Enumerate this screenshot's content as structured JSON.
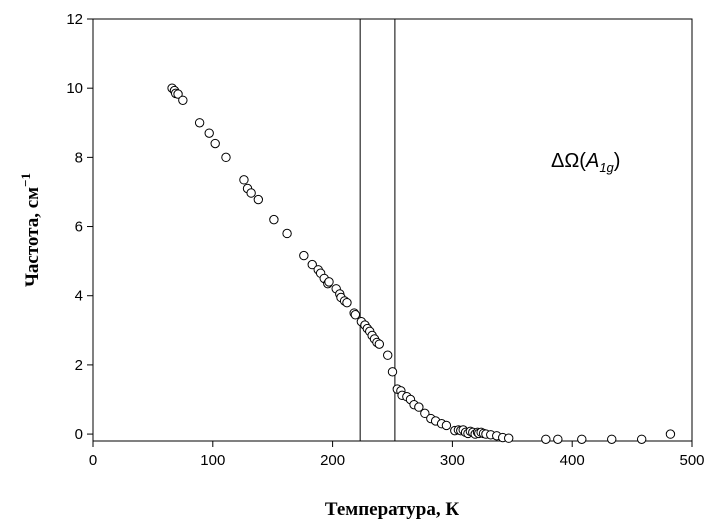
{
  "chart_data": {
    "type": "scatter",
    "xlabel": "Температура, К",
    "ylabel_main": "Частота, см",
    "ylabel_sup": "−1",
    "xlim": [
      0,
      500
    ],
    "ylim": [
      -0.2,
      12
    ],
    "xticks": [
      0,
      100,
      200,
      300,
      400,
      500
    ],
    "yticks": [
      0,
      2,
      4,
      6,
      8,
      10,
      12
    ],
    "grid": false,
    "vlines": [
      223,
      252
    ],
    "annotation": {
      "delta": "ΔΩ(",
      "a": "A",
      "sub": "1g",
      "close": ")"
    },
    "marker_color": "#000000",
    "points": [
      [
        66,
        10.0
      ],
      [
        68,
        9.93
      ],
      [
        69,
        9.85
      ],
      [
        71,
        9.83
      ],
      [
        75,
        9.65
      ],
      [
        89,
        9.0
      ],
      [
        97,
        8.7
      ],
      [
        102,
        8.4
      ],
      [
        111,
        8.0
      ],
      [
        126,
        7.35
      ],
      [
        129,
        7.1
      ],
      [
        132,
        6.97
      ],
      [
        138,
        6.78
      ],
      [
        151,
        6.2
      ],
      [
        162,
        5.8
      ],
      [
        176,
        5.16
      ],
      [
        183,
        4.9
      ],
      [
        188,
        4.75
      ],
      [
        190,
        4.65
      ],
      [
        193,
        4.5
      ],
      [
        196,
        4.35
      ],
      [
        197,
        4.4
      ],
      [
        203,
        4.2
      ],
      [
        206,
        4.05
      ],
      [
        207,
        3.95
      ],
      [
        210,
        3.85
      ],
      [
        212,
        3.8
      ],
      [
        218,
        3.5
      ],
      [
        219,
        3.45
      ],
      [
        224,
        3.25
      ],
      [
        227,
        3.15
      ],
      [
        229,
        3.05
      ],
      [
        231,
        2.97
      ],
      [
        233,
        2.85
      ],
      [
        235,
        2.75
      ],
      [
        237,
        2.65
      ],
      [
        239,
        2.6
      ],
      [
        246,
        2.28
      ],
      [
        250,
        1.8
      ],
      [
        254,
        1.3
      ],
      [
        257,
        1.25
      ],
      [
        258,
        1.12
      ],
      [
        262,
        1.08
      ],
      [
        265,
        1.0
      ],
      [
        268,
        0.85
      ],
      [
        272,
        0.78
      ],
      [
        277,
        0.6
      ],
      [
        282,
        0.45
      ],
      [
        286,
        0.38
      ],
      [
        291,
        0.3
      ],
      [
        295,
        0.25
      ],
      [
        302,
        0.1
      ],
      [
        305,
        0.12
      ],
      [
        307,
        0.1
      ],
      [
        309,
        0.12
      ],
      [
        311,
        0.05
      ],
      [
        313,
        0.02
      ],
      [
        315,
        0.08
      ],
      [
        317,
        0.05
      ],
      [
        319,
        0.0
      ],
      [
        321,
        0.05
      ],
      [
        322,
        0.02
      ],
      [
        324,
        0.05
      ],
      [
        326,
        0.02
      ],
      [
        328,
        0.0
      ],
      [
        332,
        -0.02
      ],
      [
        337,
        -0.05
      ],
      [
        342,
        -0.1
      ],
      [
        347,
        -0.12
      ],
      [
        378,
        -0.15
      ],
      [
        388,
        -0.15
      ],
      [
        408,
        -0.15
      ],
      [
        433,
        -0.15
      ],
      [
        458,
        -0.15
      ],
      [
        482,
        0.0
      ]
    ]
  }
}
